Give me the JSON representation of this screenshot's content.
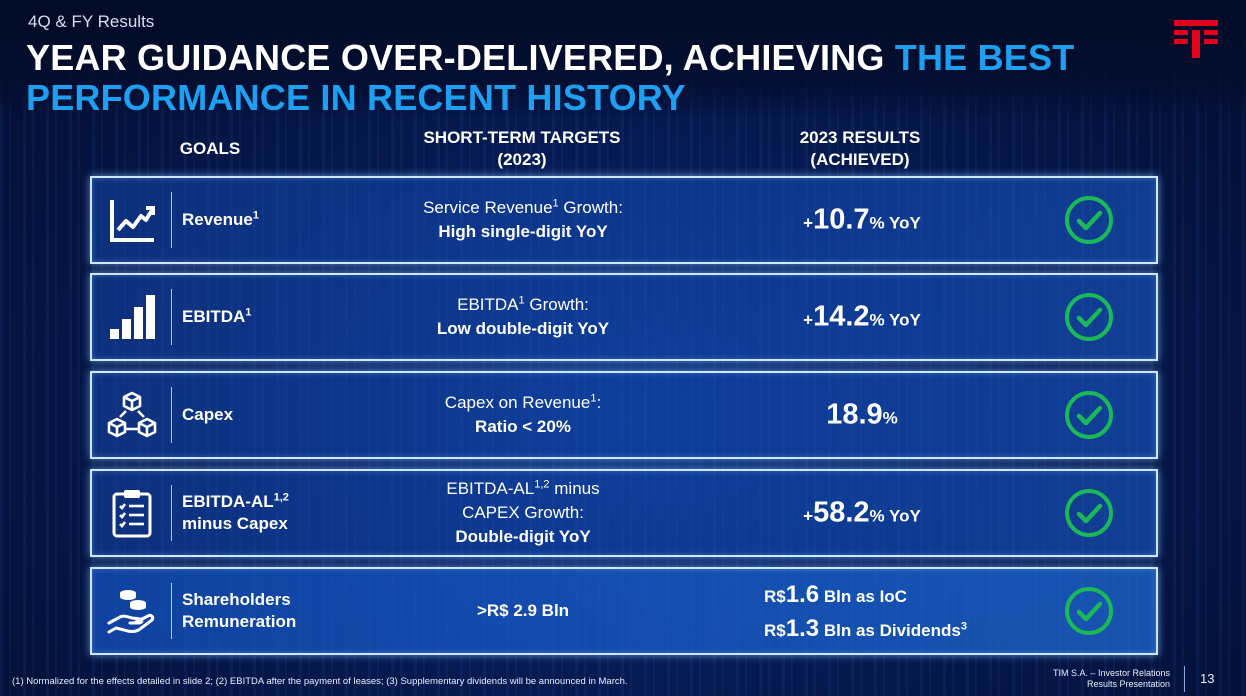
{
  "header": {
    "section": "4Q & FY Results",
    "title_main": "YEAR GUIDANCE OVER-DELIVERED, ACHIEVING ",
    "title_accent_1": "THE BEST",
    "title_accent_2": "PERFORMANCE IN RECENT HISTORY"
  },
  "columns": {
    "goals": "GOALS",
    "targets_line1": "SHORT-TERM TARGETS",
    "targets_line2": "(2023)",
    "results_line1": "2023 RESULTS",
    "results_line2": "(ACHIEVED)"
  },
  "rows": [
    {
      "icon": "line-chart-icon",
      "goal": "Revenue",
      "goal_sup": "1",
      "target_line1": "Service Revenue",
      "target_line1_sup": "1",
      "target_line1_tail": " Growth:",
      "target_line2": "High single-digit YoY",
      "result_prefix": "+",
      "result_value": "10.7",
      "result_suffix": "% YoY"
    },
    {
      "icon": "bar-chart-icon",
      "goal": "EBITDA",
      "goal_sup": "1",
      "target_line1": "EBITDA",
      "target_line1_sup": "1",
      "target_line1_tail": " Growth:",
      "target_line2": "Low double-digit YoY",
      "result_prefix": "+",
      "result_value": "14.2",
      "result_suffix": "% YoY"
    },
    {
      "icon": "cubes-icon",
      "goal": "Capex",
      "target_line1": "Capex on Revenue",
      "target_line1_sup": "1",
      "target_line1_tail": ":",
      "target_line2": "Ratio < 20%",
      "result_value": "18.9",
      "result_suffix": "%"
    },
    {
      "icon": "clipboard-checklist-icon",
      "goal": "EBITDA-AL",
      "goal_sup": "1,2",
      "goal_line2": "minus Capex",
      "target_line0": "EBITDA-AL",
      "target_line0_sup": "1,2",
      "target_line0_tail": " minus",
      "target_line1": "CAPEX Growth:",
      "target_line2": "Double-digit YoY",
      "result_prefix": "+",
      "result_value": "58.2",
      "result_suffix": "% YoY"
    },
    {
      "icon": "hand-coins-icon",
      "goal": "Shareholders",
      "goal_line2": "Remuneration",
      "target_single": ">R$ 2.9 Bln",
      "result_a_prefix": "R$",
      "result_a_value": "1.6",
      "result_a_suffix": " Bln as IoC",
      "result_b_prefix": "R$",
      "result_b_value": "1.3",
      "result_b_suffix": " Bln as Dividends",
      "result_b_sup": "3"
    }
  ],
  "footer": {
    "footnote": "(1)    Normalized for the effects detailed in slide 2; (2)    EBITDA after the payment of leases; (3)    Supplementary dividends will be announced in March.",
    "company_line1": "TIM S.A. – Investor Relations",
    "company_line2": "Results Presentation",
    "page": "13"
  },
  "colors": {
    "accent": "#1e9ff2",
    "check": "#1bb85a",
    "border": "#cfe6ff"
  }
}
